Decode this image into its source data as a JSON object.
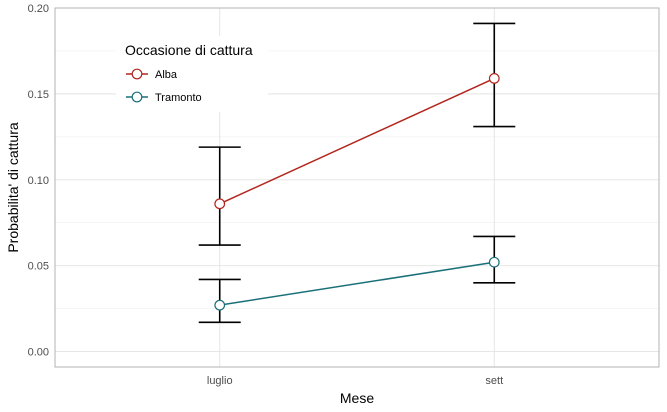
{
  "chart_data": {
    "type": "line",
    "categories": [
      "luglio",
      "sett"
    ],
    "xlabel": "Mese",
    "ylabel": "Probabilita' di cattura",
    "ylim": [
      -0.009,
      0.2
    ],
    "yticks": [
      "0.00",
      "0.05",
      "0.10",
      "0.15",
      "0.20"
    ],
    "ytick_values": [
      0,
      0.05,
      0.1,
      0.15,
      0.2
    ],
    "grid": true,
    "legend": {
      "title": "Occasione di cattura",
      "placement": "top-left"
    },
    "series": [
      {
        "name": "Alba",
        "color": "#b2261d",
        "values": [
          0.086,
          0.159
        ],
        "lower": [
          0.062,
          0.131
        ],
        "upper": [
          0.119,
          0.191
        ]
      },
      {
        "name": "Tramonto",
        "color": "#1a7078",
        "values": [
          0.027,
          0.052
        ],
        "lower": [
          0.017,
          0.04
        ],
        "upper": [
          0.042,
          0.067
        ]
      }
    ]
  }
}
